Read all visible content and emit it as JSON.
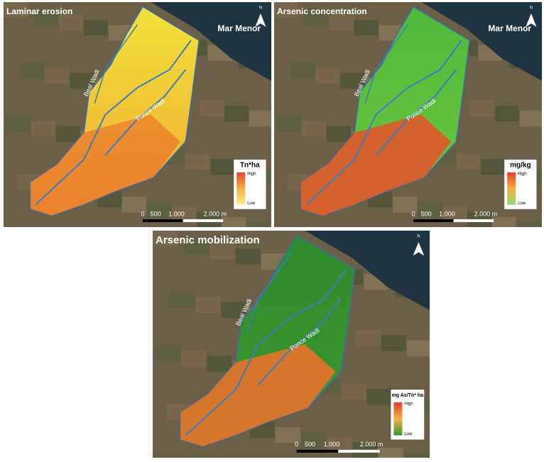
{
  "panels": [
    {
      "title": "Laminar erosion",
      "sea_label": "Mar Menor",
      "north": "N",
      "wadi_1": "Beal Wadi",
      "wadi_2": "Ponce Wadi",
      "legend": {
        "title": "Tn*ha",
        "high": "High",
        "low": "Low"
      },
      "scale": [
        "0",
        "500",
        "1.000",
        "2.000 m"
      ]
    },
    {
      "title": "Arsenic concentration",
      "sea_label": "Mar Menor",
      "north": "N",
      "wadi_1": "Beal Wadi",
      "wadi_2": "Ponce Wadi",
      "legend": {
        "title": "mg/kg",
        "high": "High",
        "low": "Low"
      },
      "scale": [
        "0",
        "500",
        "1.000",
        "2.000 m"
      ]
    },
    {
      "title": "Arsenic mobilization",
      "north": "N",
      "wadi_1": "Beal Wadi",
      "wadi_2": "Ponce Wadi",
      "legend": {
        "title": "mg As/Tn* ha",
        "high": "High",
        "low": "Low"
      },
      "scale": [
        "0",
        "500",
        "1.000",
        "2.000 m"
      ]
    }
  ]
}
